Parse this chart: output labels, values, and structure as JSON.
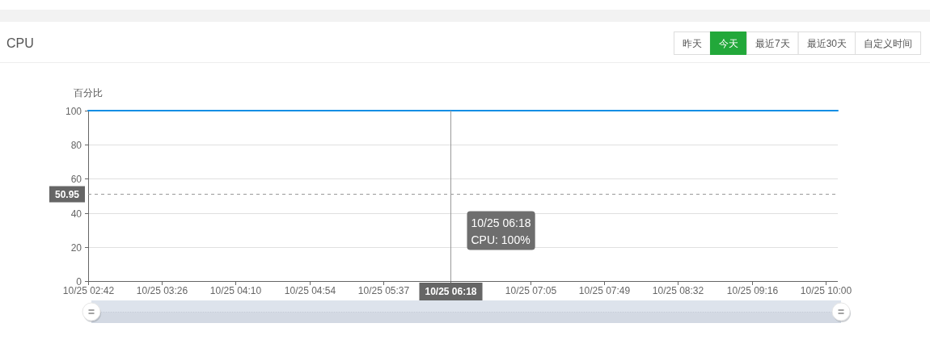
{
  "chart_data": {
    "type": "line",
    "title": "CPU",
    "ylabel": "百分比",
    "categories": [
      "10/25 02:42",
      null,
      null,
      null,
      null,
      null,
      null,
      null,
      null,
      null,
      null,
      null,
      "10/25 03:26",
      null,
      null,
      null,
      null,
      null,
      null,
      null,
      null,
      null,
      null,
      null,
      "10/25 04:10",
      null,
      null,
      null,
      null,
      null,
      null,
      null,
      null,
      null,
      null,
      null,
      "10/25 04:54",
      null,
      null,
      null,
      null,
      null,
      null,
      null,
      null,
      null,
      null,
      null,
      "10/25 05:37",
      null,
      null,
      null,
      null,
      null,
      null,
      null,
      null,
      null,
      null,
      "10/25 06:18",
      null,
      null,
      null,
      null,
      null,
      null,
      null,
      null,
      null,
      null,
      null,
      null,
      "10/25 07:05",
      null,
      null,
      null,
      null,
      null,
      null,
      null,
      null,
      null,
      null,
      null,
      "10/25 07:49",
      null,
      null,
      null,
      null,
      null,
      null,
      null,
      null,
      null,
      null,
      null,
      "10/25 08:32",
      null,
      null,
      null,
      null,
      null,
      null,
      null,
      null,
      null,
      null,
      null,
      "10/25 09:16",
      null,
      null,
      null,
      null,
      null,
      null,
      null,
      null,
      null,
      null,
      null,
      "10/25 10:00",
      null,
      null
    ],
    "series": [
      {
        "color": "#118ee4",
        "values": [
          100,
          100,
          100,
          100,
          100,
          100,
          100,
          100,
          100,
          100,
          100,
          100,
          100,
          100,
          100,
          100,
          100,
          100,
          100,
          100,
          100,
          100,
          100,
          100,
          100,
          100,
          100,
          100,
          100,
          100,
          100,
          100,
          100,
          100,
          100,
          100,
          100,
          100,
          100,
          100,
          100,
          100,
          100,
          100,
          100,
          100,
          100,
          100,
          100,
          100,
          100,
          100,
          100,
          100,
          100,
          100,
          100,
          100,
          100,
          100,
          100,
          100,
          100,
          100,
          100,
          100,
          100,
          100,
          100,
          100,
          100,
          100,
          100,
          100,
          100,
          100,
          100,
          100,
          100,
          100,
          100,
          100,
          100,
          100,
          100,
          100,
          100,
          100,
          100,
          100,
          100,
          100,
          100,
          100,
          100,
          100,
          100,
          100,
          100,
          100,
          100,
          100,
          100,
          100,
          100,
          100,
          100,
          100,
          100,
          100,
          100,
          100,
          100,
          100,
          100,
          100,
          100,
          100,
          100,
          100,
          100,
          100,
          100
        ]
      }
    ],
    "ylim": [
      0,
      100
    ],
    "yticks": [
      0,
      20,
      40,
      60,
      80,
      100
    ],
    "grid": "y",
    "marker": "none",
    "line_style": "solid",
    "ref_lines": [
      {
        "axis": "y",
        "value": 50.95,
        "label": "50.95",
        "color": "#999999",
        "line_style": "dashed"
      },
      {
        "axis": "x",
        "value": "10/25 06:18",
        "color": "#999999",
        "line_style": "solid"
      }
    ],
    "annotations": [
      "10/25 06:18\nCPU: 100%",
      "昨天",
      "今天",
      "最近7天",
      "最近30天",
      "自定义时间"
    ]
  }
}
